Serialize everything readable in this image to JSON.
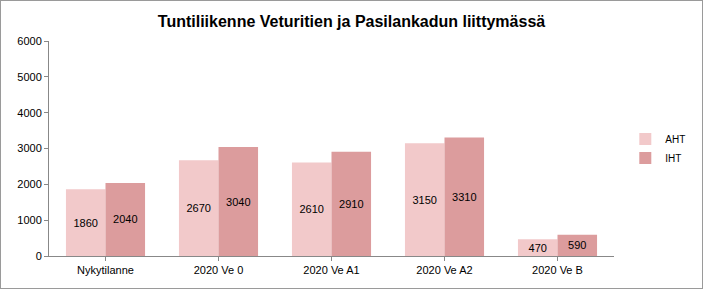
{
  "chart_data": {
    "type": "bar",
    "title": "Tuntiliikenne Veturitien ja Pasilankadun liittymässä",
    "categories": [
      "Nykytilanne",
      "2020 Ve 0",
      "2020 Ve A1",
      "2020 Ve A2",
      "2020 Ve B"
    ],
    "series": [
      {
        "name": "AHT",
        "color": "#f2c9ca",
        "values": [
          1860,
          2670,
          2610,
          3150,
          470
        ]
      },
      {
        "name": "IHT",
        "color": "#dc9c9d",
        "values": [
          2040,
          3040,
          2910,
          3310,
          590
        ]
      }
    ],
    "ylim": [
      0,
      6000
    ],
    "yticks": [
      0,
      1000,
      2000,
      3000,
      4000,
      5000,
      6000
    ],
    "grid": false,
    "legend": "right",
    "data_labels": true
  }
}
